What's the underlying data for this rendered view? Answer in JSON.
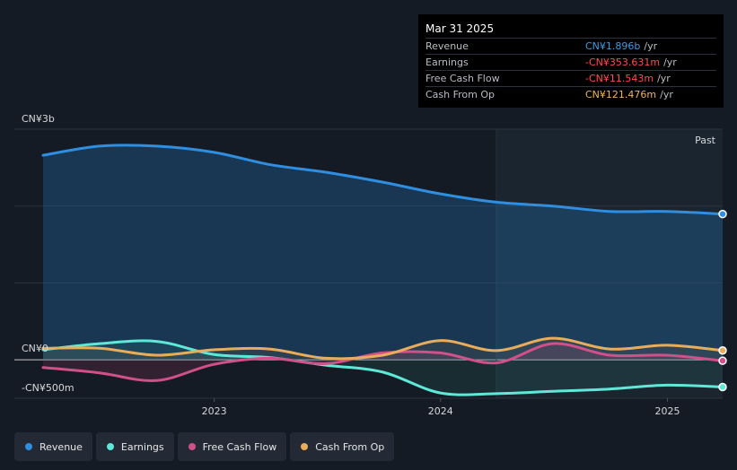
{
  "tooltip": {
    "date": "Mar 31 2025",
    "rows": [
      {
        "label": "Revenue",
        "value": "CN¥1.896b",
        "unit": "/yr",
        "color": "#3b9ce6"
      },
      {
        "label": "Earnings",
        "value": "-CN¥353.631m",
        "unit": "/yr",
        "color": "#ff4d4d"
      },
      {
        "label": "Free Cash Flow",
        "value": "-CN¥11.543m",
        "unit": "/yr",
        "color": "#ff4d4d"
      },
      {
        "label": "Cash From Op",
        "value": "CN¥121.476m",
        "unit": "/yr",
        "color": "#f0b45a"
      }
    ]
  },
  "past_label": "Past",
  "legend": [
    {
      "label": "Revenue",
      "color": "#2f8ee0"
    },
    {
      "label": "Earnings",
      "color": "#5ee8d8"
    },
    {
      "label": "Free Cash Flow",
      "color": "#d0508a"
    },
    {
      "label": "Cash From Op",
      "color": "#e8ad5a"
    }
  ],
  "chart_data": {
    "type": "line",
    "y_unit": "CN¥ millions",
    "ylim": [
      -500,
      3000
    ],
    "y_tick_labels": [
      {
        "value": 3000,
        "label": "CN¥3b"
      },
      {
        "value": 0,
        "label": "CN¥0"
      },
      {
        "value": -500,
        "label": "-CN¥500m"
      }
    ],
    "x_tick_labels": [
      "2023",
      "2024",
      "2025"
    ],
    "xlim": [
      "2022-03-31",
      "2025-03-31"
    ],
    "past_region_start": "2024-03-31",
    "grid": "horizontal",
    "legend_position": "bottom",
    "x": [
      "2022-03-31",
      "2022-06-30",
      "2022-09-30",
      "2022-12-31",
      "2023-03-31",
      "2023-06-30",
      "2023-09-30",
      "2023-12-31",
      "2024-03-31",
      "2024-06-30",
      "2024-09-30",
      "2024-12-31",
      "2025-03-31"
    ],
    "series": [
      {
        "name": "Revenue",
        "color": "#2f8ee0",
        "values": [
          2660,
          2780,
          2780,
          2700,
          2540,
          2440,
          2310,
          2160,
          2050,
          2000,
          1930,
          1930,
          1896
        ]
      },
      {
        "name": "Earnings",
        "color": "#5ee8d8",
        "values": [
          130,
          210,
          240,
          70,
          30,
          -70,
          -160,
          -430,
          -440,
          -410,
          -380,
          -330,
          -354
        ]
      },
      {
        "name": "Free Cash Flow",
        "color": "#d0508a",
        "values": [
          -100,
          -170,
          -270,
          -60,
          20,
          -50,
          90,
          90,
          -40,
          210,
          60,
          60,
          -12
        ]
      },
      {
        "name": "Cash From Op",
        "color": "#e8ad5a",
        "values": [
          150,
          150,
          60,
          130,
          140,
          20,
          60,
          250,
          120,
          280,
          140,
          190,
          121
        ]
      }
    ]
  }
}
